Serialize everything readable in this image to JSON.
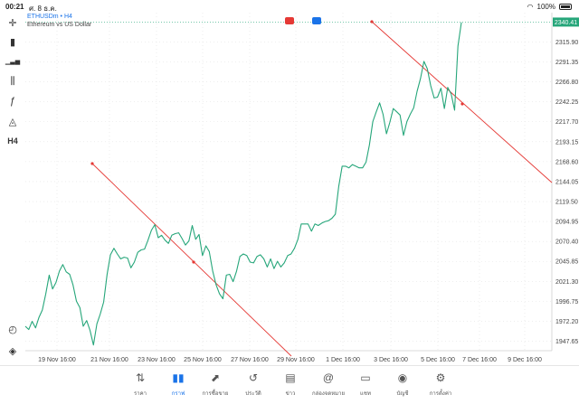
{
  "status": {
    "time": "00:21",
    "date": "ศ. 8 ธ.ค.",
    "battery": "100%"
  },
  "header": {
    "symbol": "ETHUSDm • H4",
    "description": "Ethereum vs US Dollar"
  },
  "toolbar": [
    {
      "name": "crosshair-icon",
      "glyph": "✛"
    },
    {
      "name": "candlestick-icon",
      "glyph": "▮"
    },
    {
      "name": "bar-chart-icon",
      "glyph": "▁▃▅"
    },
    {
      "name": "indicators-icon",
      "glyph": "⫼"
    },
    {
      "name": "function-icon",
      "glyph": "ƒ"
    },
    {
      "name": "shapes-icon",
      "glyph": "◬"
    },
    {
      "name": "timeframe-button",
      "glyph": "H4"
    }
  ],
  "colors": {
    "price_line": "#26a67a",
    "trendline": "#e53935",
    "current_price_bg": "#26a67a",
    "active_nav": "#1a73e8"
  },
  "chart_data": {
    "type": "line",
    "symbol": "ETHUSDm",
    "timeframe": "H4",
    "current_price": "2340.41",
    "y_ticks": [
      "2315.90",
      "2291.35",
      "2266.80",
      "2242.25",
      "2217.70",
      "2193.15",
      "2168.60",
      "2144.05",
      "2119.50",
      "2094.95",
      "2070.40",
      "2045.85",
      "2021.30",
      "1996.75",
      "1972.20",
      "1947.65"
    ],
    "x_ticks": [
      "19 Nov 16:00",
      "21 Nov 16:00",
      "23 Nov 16:00",
      "25 Nov 16:00",
      "27 Nov 16:00",
      "29 Nov 16:00",
      "1 Dec 16:00",
      "3 Dec 16:00",
      "5 Dec 16:00",
      "7 Dec 16:00",
      "9 Dec 16:00"
    ],
    "ylim": [
      1936,
      2352
    ],
    "x_index_range": [
      0,
      128
    ],
    "series": [
      {
        "values": [
          1966,
          1962,
          1972,
          1964,
          1977,
          1986,
          2006,
          2029,
          2012,
          2020,
          2034,
          2042,
          2033,
          2030,
          2017,
          1997,
          1989,
          1966,
          1973,
          1961,
          1943,
          1969,
          1981,
          1996,
          2030,
          2054,
          2062,
          2055,
          2049,
          2051,
          2050,
          2038,
          2045,
          2057,
          2060,
          2061,
          2072,
          2084,
          2091,
          2075,
          2078,
          2072,
          2068,
          2078,
          2080,
          2081,
          2074,
          2066,
          2071,
          2090,
          2073,
          2079,
          2053,
          2065,
          2058,
          2034,
          2017,
          2006,
          2000,
          2029,
          2030,
          2021,
          2034,
          2052,
          2055,
          2053,
          2045,
          2044,
          2052,
          2054,
          2049,
          2039,
          2049,
          2037,
          2046,
          2039,
          2044,
          2053,
          2055,
          2062,
          2073,
          2092,
          2092,
          2092,
          2083,
          2092,
          2090,
          2093,
          2095,
          2096,
          2099,
          2104,
          2138,
          2163,
          2163,
          2161,
          2165,
          2163,
          2161,
          2161,
          2168,
          2189,
          2218,
          2230,
          2241,
          2227,
          2203,
          2217,
          2234,
          2230,
          2226,
          2201,
          2218,
          2227,
          2235,
          2255,
          2271,
          2292,
          2283,
          2262,
          2247,
          2248,
          2259,
          2234,
          2260,
          2252,
          2232,
          2311,
          2340
        ]
      }
    ]
  },
  "nav": [
    {
      "name": "nav-quotes",
      "icon": "⇅",
      "label": "ราคา",
      "active": false
    },
    {
      "name": "nav-chart",
      "icon": "▮▮",
      "label": "กราฟ",
      "active": true
    },
    {
      "name": "nav-trade",
      "icon": "⬈",
      "label": "การซื้อขาย",
      "active": false
    },
    {
      "name": "nav-history",
      "icon": "↺",
      "label": "ประวัติ",
      "active": false
    },
    {
      "name": "nav-news",
      "icon": "▤",
      "label": "ข่าว",
      "active": false
    },
    {
      "name": "nav-mailbox",
      "icon": "@",
      "label": "กล่องจดหมาย",
      "active": false
    },
    {
      "name": "nav-chat",
      "icon": "▭",
      "label": "แชท",
      "active": false
    },
    {
      "name": "nav-account",
      "icon": "◉",
      "label": "บัญชี",
      "active": false
    },
    {
      "name": "nav-settings",
      "icon": "⚙",
      "label": "การตั้งค่า",
      "active": false
    }
  ]
}
